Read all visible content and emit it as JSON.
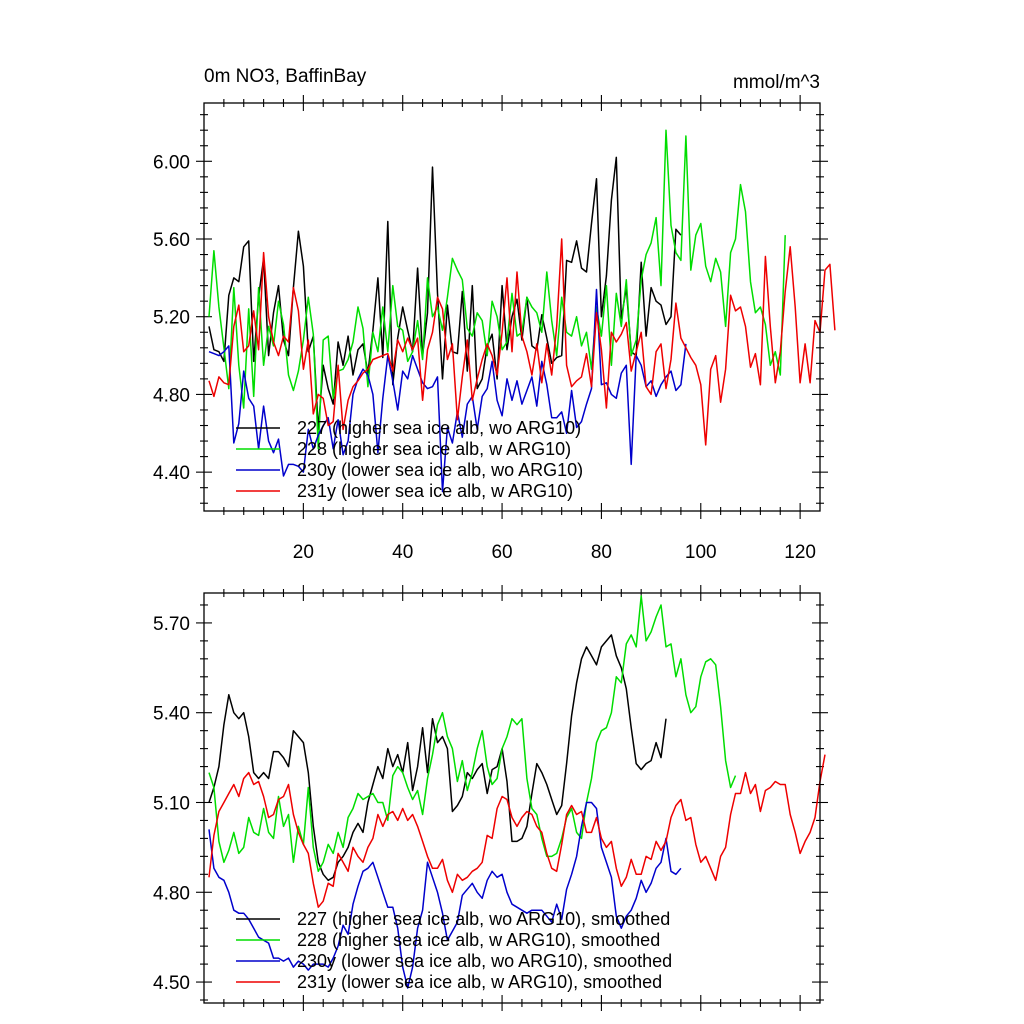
{
  "chart_data": [
    {
      "type": "line",
      "title_left": "0m NO3, BaffinBay",
      "title_right": "mmol/m^3",
      "xlabel": "",
      "ylabel": "",
      "xlim": [
        0,
        124
      ],
      "ylim": [
        4.2,
        6.3
      ],
      "x_ticks": [
        20,
        40,
        60,
        80,
        100,
        120
      ],
      "x_tick_labels": [
        "20",
        "40",
        "60",
        "80",
        "100",
        "120"
      ],
      "y_ticks": [
        4.4,
        4.8,
        5.2,
        5.6,
        6.0
      ],
      "y_tick_labels": [
        "4.40",
        "4.80",
        "5.20",
        "5.60",
        "6.00"
      ],
      "y_minor_step": 0.08,
      "x_minor_step": 4,
      "grid": false,
      "legend_position": "bottom-left",
      "series": [
        {
          "name": "227 (higher sea ice alb, wo ARG10)",
          "color": "#000000",
          "x_start": 1,
          "values": [
            5.15,
            5.03,
            5.02,
            4.97,
            5.31,
            5.4,
            5.38,
            5.56,
            5.59,
            4.97,
            5.3,
            5.5,
            5.0,
            5.22,
            5.36,
            5.08,
            5.0,
            5.35,
            5.64,
            5.46,
            5.02,
            5.1,
            4.62,
            4.95,
            4.83,
            4.75,
            5.07,
            4.95,
            5.1,
            4.9,
            5.03,
            5.06,
            4.91,
            5.13,
            5.4,
            4.99,
            5.69,
            4.85,
            5.09,
            5.25,
            5.13,
            5.02,
            5.45,
            5.0,
            5.22,
            5.97,
            5.32,
            4.88,
            5.26,
            5.02,
            5.01,
            5.33,
            4.92,
            5.36,
            4.83,
            4.88,
            5.05,
            5.11,
            4.88,
            5.36,
            5.03,
            5.2,
            5.29,
            5.08,
            5.3,
            5.05,
            5.03,
            5.21,
            5.09,
            4.96,
            4.99,
            5.0,
            5.49,
            5.48,
            5.59,
            5.45,
            5.43,
            5.68,
            5.91,
            5.2,
            5.41,
            5.8,
            6.02,
            5.19,
            5.35,
            5.02,
            5.0,
            5.48,
            5.1,
            5.35,
            5.28,
            5.26,
            5.16,
            5.2,
            5.65,
            5.62
          ]
        },
        {
          "name": "228 (higher sea ice alb, w ARG10)",
          "color": "#00dd00",
          "x_start": 1,
          "values": [
            5.2,
            5.54,
            5.25,
            5.04,
            4.83,
            5.35,
            4.95,
            4.73,
            5.24,
            4.79,
            5.35,
            4.95,
            5.15,
            5.05,
            5.28,
            5.16,
            4.9,
            4.82,
            4.92,
            5.08,
            5.3,
            5.11,
            4.52,
            5.08,
            5.1,
            4.78,
            4.92,
            4.93,
            4.98,
            5.07,
            5.25,
            5.14,
            4.84,
            5.12,
            5.02,
            5.25,
            5.02,
            5.36,
            5.15,
            5.13,
            4.97,
            5.02,
            5.18,
            4.98,
            5.4,
            5.2,
            5.25,
            5.13,
            5.3,
            5.5,
            5.44,
            5.39,
            5.14,
            5.1,
            5.22,
            5.18,
            5.0,
            5.28,
            5.2,
            5.03,
            5.07,
            5.32,
            5.1,
            5.12,
            5.3,
            5.25,
            5.22,
            5.12,
            5.43,
            5.18,
            5.0,
            5.3,
            5.12,
            5.1,
            5.2,
            5.05,
            5.12,
            4.93,
            5.25,
            5.1,
            5.36,
            4.95,
            5.32,
            5.15,
            5.39,
            5.0,
            5.08,
            5.39,
            5.52,
            5.58,
            5.71,
            5.36,
            6.16,
            5.67,
            5.53,
            5.49,
            6.13,
            5.44,
            5.62,
            5.68,
            5.46,
            5.38,
            5.5,
            5.43,
            5.15,
            5.53,
            5.6,
            5.88,
            5.74,
            5.38,
            5.22,
            5.25,
            5.16,
            4.95,
            5.02,
            4.9,
            5.62
          ]
        },
        {
          "name": "230y (lower sea ice alb, wo ARG10)",
          "color": "#0000cc",
          "x_start": 1,
          "values": [
            5.02,
            5.01,
            5.0,
            5.02,
            5.05,
            4.55,
            4.65,
            4.92,
            4.78,
            4.74,
            4.52,
            4.74,
            4.56,
            4.5,
            4.57,
            4.38,
            4.44,
            4.44,
            4.43,
            4.4,
            4.62,
            4.52,
            4.59,
            4.64,
            4.68,
            4.52,
            4.67,
            4.49,
            4.56,
            4.8,
            4.88,
            4.93,
            4.9,
            4.8,
            4.5,
            4.78,
            5.0,
            4.87,
            4.72,
            4.92,
            4.88,
            5.0,
            4.93,
            4.86,
            4.83,
            4.84,
            4.89,
            4.3,
            4.63,
            4.55,
            4.71,
            4.58,
            4.75,
            4.79,
            4.62,
            4.79,
            4.83,
            4.97,
            4.77,
            4.69,
            4.88,
            4.77,
            4.87,
            4.75,
            4.82,
            4.89,
            4.74,
            4.97,
            4.85,
            4.68,
            4.68,
            4.71,
            4.6,
            4.82,
            4.63,
            4.66,
            4.75,
            4.83,
            5.34,
            4.85,
            4.86,
            4.8,
            4.78,
            4.91,
            4.95,
            4.44,
            5.0,
            4.95,
            4.84,
            4.87,
            4.79,
            4.85,
            4.89,
            4.92,
            4.82,
            4.85,
            5.06
          ]
        },
        {
          "name": "231y (lower sea ice alb, w ARG10)",
          "color": "#ee0000",
          "x_start": 1,
          "values": [
            4.87,
            4.79,
            4.89,
            4.86,
            4.85,
            5.15,
            5.26,
            5.02,
            5.05,
            5.23,
            5.03,
            5.53,
            5.2,
            5.07,
            5.0,
            5.1,
            5.07,
            5.35,
            5.23,
            4.93,
            5.08,
            4.7,
            4.8,
            4.78,
            4.64,
            4.66,
            4.95,
            4.62,
            4.77,
            4.84,
            4.87,
            4.91,
            4.93,
            4.98,
            4.99,
            5.0,
            5.01,
            4.92,
            5.08,
            5.02,
            5.09,
            5.03,
            5.09,
            4.77,
            5.03,
            5.12,
            5.3,
            5.24,
            4.98,
            5.06,
            4.67,
            4.89,
            5.08,
            4.77,
            4.88,
            4.98,
            5.06,
            5.0,
            4.9,
            5.12,
            5.4,
            5.02,
            5.43,
            5.1,
            5.02,
            4.9,
            5.06,
            4.86,
            5.06,
            4.9,
            5.15,
            5.6,
            4.95,
            4.84,
            4.87,
            4.89,
            5.01,
            4.84,
            5.22,
            5.03,
            4.73,
            5.12,
            5.07,
            5.11,
            5.17,
            4.92,
            5.02,
            5.12,
            4.84,
            4.8,
            5.02,
            5.06,
            4.83,
            4.98,
            5.27,
            5.09,
            5.04,
            4.99,
            4.95,
            4.85,
            4.54,
            4.93,
            5.0,
            4.76,
            4.93,
            5.31,
            5.23,
            5.25,
            5.15,
            4.94,
            5.01,
            4.85,
            5.51,
            5.15,
            4.86,
            5.02,
            5.33,
            5.56,
            5.25,
            4.86,
            5.06,
            4.86,
            5.18,
            5.12,
            5.44,
            5.47,
            5.13
          ]
        }
      ]
    },
    {
      "type": "line",
      "title": "",
      "xlabel": "",
      "ylabel": "",
      "xlim": [
        0,
        124
      ],
      "ylim": [
        4.43,
        5.8
      ],
      "x_ticks": [
        20,
        40,
        60,
        80,
        100,
        120
      ],
      "y_ticks": [
        4.5,
        4.8,
        5.1,
        5.4,
        5.7
      ],
      "y_tick_labels": [
        "4.50",
        "4.80",
        "5.10",
        "5.40",
        "5.70"
      ],
      "y_minor_step": 0.06,
      "x_minor_step": 4,
      "grid": false,
      "legend_position": "bottom-left",
      "series": [
        {
          "name": "227 (higher sea ice alb, wo ARG10), smoothed",
          "color": "#000000",
          "x_start": 1,
          "values": [
            5.1,
            5.15,
            5.22,
            5.36,
            5.46,
            5.4,
            5.38,
            5.4,
            5.32,
            5.2,
            5.18,
            5.2,
            5.18,
            5.27,
            5.27,
            5.25,
            5.22,
            5.34,
            5.32,
            5.3,
            5.2,
            5.02,
            4.9,
            4.86,
            4.84,
            4.85,
            4.9,
            4.92,
            4.95,
            5.0,
            5.03,
            5.0,
            5.1,
            5.16,
            5.22,
            5.18,
            5.28,
            5.22,
            5.26,
            5.2,
            5.3,
            5.14,
            5.22,
            5.35,
            5.2,
            5.38,
            5.3,
            5.32,
            5.28,
            5.07,
            5.09,
            5.12,
            5.2,
            5.18,
            5.21,
            5.23,
            5.13,
            5.21,
            5.22,
            5.28,
            5.17,
            4.97,
            4.97,
            4.98,
            5.02,
            5.13,
            5.23,
            5.2,
            5.16,
            5.11,
            5.06,
            5.09,
            5.23,
            5.39,
            5.5,
            5.58,
            5.62,
            5.59,
            5.56,
            5.62,
            5.64,
            5.66,
            5.59,
            5.55,
            5.48,
            5.35,
            5.23,
            5.21,
            5.23,
            5.24,
            5.3,
            5.25,
            5.38
          ]
        },
        {
          "name": "228 (higher sea ice alb, w ARG10), smoothed",
          "color": "#00dd00",
          "x_start": 1,
          "values": [
            5.2,
            5.15,
            4.97,
            4.9,
            4.94,
            5.0,
            4.93,
            4.95,
            5.05,
            5.0,
            4.99,
            5.08,
            5.0,
            4.98,
            5.12,
            5.02,
            5.06,
            4.9,
            5.02,
            4.96,
            5.15,
            4.95,
            4.87,
            4.9,
            4.96,
            4.93,
            5.0,
            4.95,
            5.05,
            5.08,
            5.13,
            5.11,
            5.12,
            5.13,
            5.1,
            5.1,
            5.04,
            5.19,
            5.22,
            5.2,
            5.15,
            5.11,
            5.14,
            5.06,
            5.18,
            5.26,
            5.36,
            5.4,
            5.32,
            5.28,
            5.17,
            5.24,
            5.14,
            5.2,
            5.28,
            5.34,
            5.22,
            5.16,
            5.18,
            5.28,
            5.32,
            5.38,
            5.36,
            5.38,
            5.18,
            5.08,
            5.06,
            4.98,
            4.92,
            4.92,
            4.93,
            4.98,
            5.05,
            5.08,
            5.0,
            4.98,
            5.1,
            5.18,
            5.3,
            5.34,
            5.35,
            5.4,
            5.52,
            5.5,
            5.63,
            5.66,
            5.62,
            5.79,
            5.64,
            5.67,
            5.72,
            5.76,
            5.62,
            5.63,
            5.52,
            5.58,
            5.46,
            5.4,
            5.42,
            5.52,
            5.57,
            5.58,
            5.56,
            5.42,
            5.24,
            5.15,
            5.19
          ]
        },
        {
          "name": "230y (lower sea ice alb, wo ARG10), smoothed",
          "color": "#0000cc",
          "x_start": 1,
          "values": [
            5.01,
            4.88,
            4.85,
            4.84,
            4.8,
            4.74,
            4.73,
            4.73,
            4.71,
            4.68,
            4.65,
            4.64,
            4.63,
            4.58,
            4.58,
            4.57,
            4.58,
            4.55,
            4.57,
            4.56,
            4.54,
            4.56,
            4.56,
            4.56,
            4.55,
            4.58,
            4.62,
            4.69,
            4.66,
            4.76,
            4.82,
            4.87,
            4.88,
            4.9,
            4.85,
            4.8,
            4.75,
            4.75,
            4.68,
            4.55,
            4.48,
            4.55,
            4.68,
            4.74,
            4.9,
            4.85,
            4.8,
            4.73,
            4.64,
            4.67,
            4.7,
            4.79,
            4.81,
            4.83,
            4.8,
            4.78,
            4.84,
            4.87,
            4.85,
            4.86,
            4.8,
            4.76,
            4.75,
            4.74,
            4.73,
            4.74,
            4.74,
            4.74,
            4.72,
            4.7,
            4.76,
            4.71,
            4.81,
            4.86,
            4.92,
            5.02,
            5.1,
            5.1,
            5.08,
            4.95,
            4.9,
            4.85,
            4.72,
            4.68,
            4.72,
            4.74,
            4.78,
            4.84,
            4.8,
            4.83,
            4.88,
            4.9,
            4.98,
            4.87,
            4.86,
            4.88
          ]
        },
        {
          "name": "231y (lower sea ice alb, w ARG10), smoothed",
          "color": "#ee0000",
          "x_start": 1,
          "values": [
            4.85,
            4.99,
            5.07,
            5.1,
            5.13,
            5.16,
            5.12,
            5.18,
            5.2,
            5.16,
            5.17,
            5.12,
            5.05,
            5.06,
            5.11,
            5.12,
            5.16,
            5.06,
            5.0,
            4.96,
            4.93,
            4.83,
            4.75,
            4.77,
            4.83,
            4.82,
            4.93,
            4.9,
            4.87,
            4.95,
            4.92,
            4.9,
            4.95,
            4.98,
            5.06,
            5.02,
            5.06,
            5.07,
            5.04,
            5.08,
            5.04,
            5.06,
            5.02,
            4.97,
            4.92,
            4.88,
            4.88,
            4.91,
            4.84,
            4.8,
            4.86,
            4.84,
            4.85,
            4.87,
            4.88,
            4.9,
            4.99,
            4.98,
            5.08,
            5.12,
            5.11,
            5.05,
            5.02,
            5.05,
            5.07,
            5.06,
            5.02,
            5.0,
            4.93,
            4.88,
            4.87,
            4.96,
            5.06,
            5.09,
            5.06,
            5.07,
            5.0,
            5.0,
            5.05,
            4.98,
            4.95,
            4.97,
            4.88,
            4.82,
            4.85,
            4.91,
            4.86,
            4.86,
            4.92,
            4.91,
            4.97,
            4.94,
            4.97,
            5.05,
            5.09,
            5.11,
            5.04,
            5.05,
            4.96,
            4.9,
            4.92,
            4.88,
            4.84,
            4.92,
            4.95,
            5.06,
            5.13,
            5.13,
            5.2,
            5.13,
            5.16,
            5.07,
            5.14,
            5.15,
            5.17,
            5.16,
            5.16,
            5.06,
            5.0,
            4.93,
            4.97,
            5.0,
            5.05,
            5.17,
            5.26
          ]
        }
      ]
    }
  ]
}
